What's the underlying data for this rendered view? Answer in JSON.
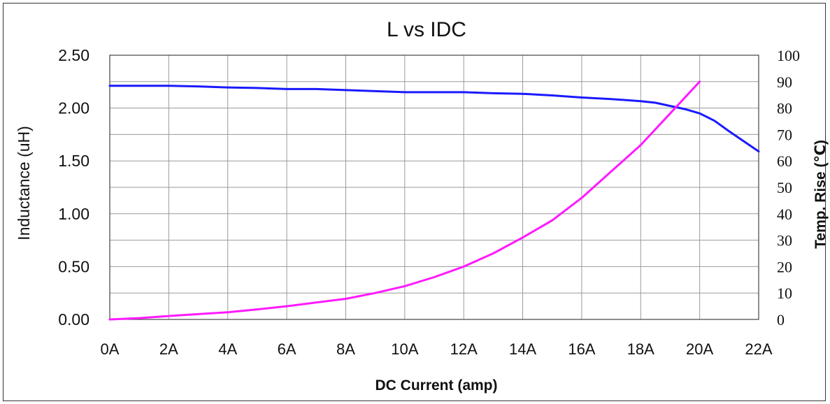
{
  "chart_data": {
    "type": "line",
    "title": "L vs IDC",
    "xlabel": "DC Current (amp)",
    "ylabel": "Inductance (uH)",
    "y2label": "Temp. Rise (℃)",
    "x_ticks": [
      "0A",
      "2A",
      "4A",
      "6A",
      "8A",
      "10A",
      "12A",
      "14A",
      "16A",
      "18A",
      "20A",
      "22A"
    ],
    "xlim": [
      0,
      22
    ],
    "ylim": [
      0,
      2.5
    ],
    "y_ticks": [
      "0.00",
      "0.50",
      "1.00",
      "1.50",
      "2.00",
      "2.50"
    ],
    "y2lim": [
      0,
      100
    ],
    "y2_ticks": [
      "0",
      "10",
      "20",
      "30",
      "40",
      "50",
      "60",
      "70",
      "80",
      "90",
      "100"
    ],
    "grid": true,
    "series": [
      {
        "axis": "left",
        "color": "#1a1aff",
        "x": [
          0,
          1,
          2,
          3,
          4,
          5,
          6,
          7,
          8,
          9,
          10,
          11,
          12,
          13,
          14,
          15,
          16,
          17,
          18,
          18.5,
          19,
          19.5,
          20,
          20.5,
          21,
          22
        ],
        "y": [
          2.21,
          2.21,
          2.21,
          2.205,
          2.195,
          2.19,
          2.18,
          2.18,
          2.17,
          2.16,
          2.15,
          2.15,
          2.15,
          2.14,
          2.135,
          2.12,
          2.1,
          2.085,
          2.065,
          2.05,
          2.02,
          1.99,
          1.95,
          1.88,
          1.78,
          1.59
        ]
      },
      {
        "axis": "right",
        "color": "#ff1aff",
        "x": [
          0,
          1,
          2,
          3,
          4,
          5,
          6,
          7,
          8,
          9,
          10,
          11,
          12,
          13,
          14,
          15,
          16,
          17,
          18,
          19,
          20
        ],
        "y": [
          0,
          0.5,
          1.3,
          2.0,
          2.7,
          3.8,
          5.0,
          6.4,
          7.8,
          10.0,
          12.6,
          16.0,
          20.0,
          25.0,
          31.0,
          37.5,
          46.0,
          56.0,
          66.0,
          78.0,
          90.0
        ]
      }
    ]
  }
}
